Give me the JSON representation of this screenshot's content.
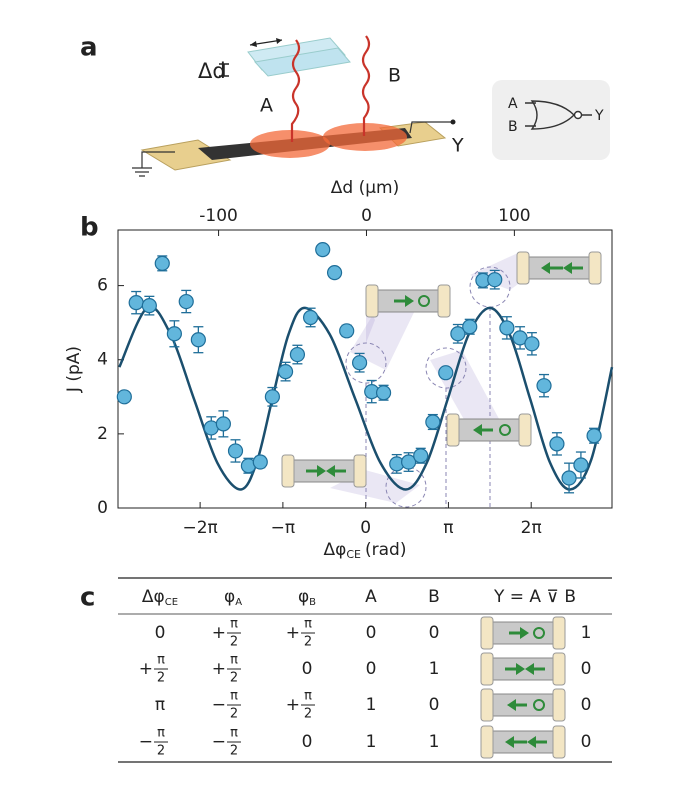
{
  "panel_labels": [
    "a",
    "b",
    "c"
  ],
  "diagram": {
    "delta_d": "Δd",
    "beam_a": "A",
    "beam_b": "B",
    "output": "Y",
    "gate_inputs": [
      "A",
      "B"
    ],
    "gate_output": "Y"
  },
  "chart_data": {
    "type": "scatter",
    "ylabel": "J (pA)",
    "xlabel": {
      "main": "Δφ",
      "sub": "CE",
      "unit": "(rad)"
    },
    "x2label": "Δd (µm)",
    "xlim": [
      -9.4,
      9.35
    ],
    "ylim": [
      0,
      7.5
    ],
    "yticks": [
      0,
      2,
      4,
      6
    ],
    "xticks": [
      {
        "value": -6.2832,
        "label": "−2π"
      },
      {
        "value": -3.1416,
        "label": "−π"
      },
      0,
      {
        "value": 3.1416,
        "label": "π"
      },
      {
        "value": 6.2832,
        "label": "2π"
      }
    ],
    "x2lim": [
      -168,
      166
    ],
    "x2ticks": [
      -100,
      0,
      100
    ],
    "color": "#62b6dc",
    "x": [
      -9.16,
      -8.71,
      -8.21,
      -7.72,
      -7.26,
      -6.81,
      -6.35,
      -5.86,
      -5.4,
      -4.94,
      -4.45,
      -4.0,
      -3.54,
      -3.04,
      -2.59,
      -2.09,
      -1.63,
      -1.18,
      -0.72,
      -0.23,
      0.23,
      0.68,
      1.18,
      1.63,
      2.09,
      2.55,
      3.04,
      3.5,
      3.95,
      4.45,
      4.9,
      5.36,
      5.86,
      6.31,
      6.77,
      7.26,
      7.72,
      8.17,
      8.67
    ],
    "values": [
      3.0,
      5.54,
      5.46,
      6.6,
      4.7,
      5.57,
      4.54,
      2.16,
      2.27,
      1.54,
      1.14,
      1.24,
      3.0,
      3.68,
      4.14,
      5.14,
      6.97,
      6.35,
      4.78,
      3.92,
      3.14,
      3.11,
      1.19,
      1.24,
      1.41,
      2.32,
      3.65,
      4.7,
      4.89,
      6.14,
      6.16,
      4.86,
      4.59,
      4.43,
      3.3,
      1.73,
      0.81,
      1.16,
      1.95
    ],
    "errors": [
      0.1,
      0.3,
      0.25,
      0.2,
      0.35,
      0.3,
      0.35,
      0.3,
      0.35,
      0.3,
      0.2,
      0.15,
      0.25,
      0.25,
      0.25,
      0.25,
      0.1,
      0.1,
      0.15,
      0.25,
      0.3,
      0.2,
      0.25,
      0.25,
      0.2,
      0.2,
      0.1,
      0.25,
      0.2,
      0.2,
      0.25,
      0.3,
      0.3,
      0.3,
      0.3,
      0.3,
      0.4,
      0.35,
      0.2
    ],
    "fit": {
      "color": "#1b4f6e",
      "x": [
        -9.35,
        -8.29,
        -7.4,
        -6.52,
        -5.63,
        -4.75,
        -4.14,
        -3.54,
        -2.93,
        -2.32,
        -1.36,
        -0.4,
        0.56,
        1.52,
        2.32,
        3.12,
        3.91,
        4.71,
        5.47,
        6.24,
        7.0,
        7.76,
        8.56,
        9.35
      ],
      "values": [
        3.8,
        5.4,
        4.68,
        2.95,
        1.22,
        0.5,
        1.22,
        2.95,
        4.68,
        5.4,
        4.68,
        2.95,
        1.22,
        0.5,
        1.22,
        2.95,
        4.68,
        5.4,
        4.68,
        2.95,
        1.22,
        0.5,
        1.3,
        3.8
      ]
    }
  },
  "table": {
    "header": [
      {
        "main": "Δφ",
        "sub": "CE"
      },
      {
        "main": "φ",
        "sub": "A"
      },
      {
        "main": "φ",
        "sub": "B"
      },
      "A",
      "B",
      "Y = A ⊽ B"
    ],
    "rows": [
      [
        0,
        {
          "sign": "+",
          "num": "π",
          "den": "2"
        },
        {
          "sign": "+",
          "num": "π",
          "den": "2"
        },
        0,
        0,
        1
      ],
      [
        {
          "sign": "+",
          "num": "π",
          "den": "2"
        },
        {
          "sign": "+",
          "num": "π",
          "den": "2"
        },
        0,
        0,
        1,
        0
      ],
      [
        "π",
        {
          "sign": "−",
          "num": "π",
          "den": "2"
        },
        {
          "sign": "+",
          "num": "π",
          "den": "2"
        },
        1,
        0,
        0
      ],
      [
        {
          "sign": "−",
          "num": "π",
          "den": "2"
        },
        {
          "sign": "−",
          "num": "π",
          "den": "2"
        },
        0,
        1,
        1,
        0
      ]
    ]
  }
}
